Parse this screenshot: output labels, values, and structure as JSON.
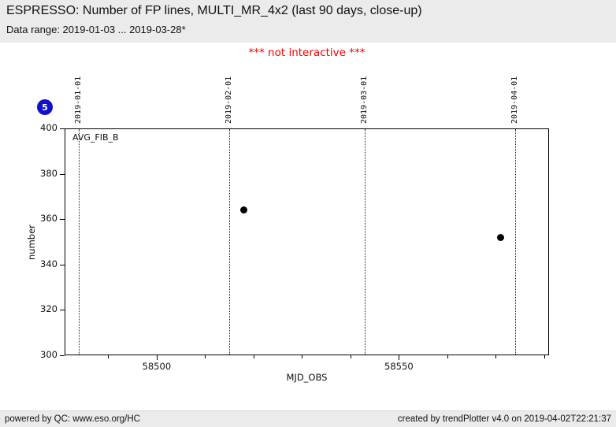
{
  "header": {
    "title": "ESPRESSO: Number of FP lines, MULTI_MR_4x2 (last 90 days, close-up)",
    "subtitle": "Data range: 2019-01-03 ... 2019-03-28*"
  },
  "notice": "*** not interactive ***",
  "plot_number_badge": "5",
  "chart_data": {
    "type": "scatter",
    "series_label": "AVG_FIB_B",
    "xlabel": "MJD_OBS",
    "ylabel": "number",
    "xlim": [
      58481,
      58581
    ],
    "ylim": [
      300,
      400
    ],
    "x_major_ticks": [
      58500,
      58550
    ],
    "x_minor_ticks": [
      58490,
      58510,
      58520,
      58530,
      58540,
      58560,
      58570,
      58580
    ],
    "y_ticks": [
      300,
      320,
      340,
      360,
      380,
      400
    ],
    "date_gridlines": [
      {
        "mjd": 58484,
        "label": "2019-01-01"
      },
      {
        "mjd": 58515,
        "label": "2019-02-01"
      },
      {
        "mjd": 58543,
        "label": "2019-03-01"
      },
      {
        "mjd": 58574,
        "label": "2019-04-01"
      }
    ],
    "points": [
      {
        "mjd": 58518,
        "value": 364
      },
      {
        "mjd": 58571,
        "value": 352
      }
    ],
    "marker_color": "#000000",
    "legend_position": "none",
    "grid": "vertical dotted date lines only"
  },
  "colors": {
    "header_bg": "#ebebeb",
    "footer_bg": "#ebebeb",
    "notice_red": "#f40000",
    "badge_blue": "#1111cc",
    "plot_border": "#000000"
  },
  "footer": {
    "left": "powered by QC: www.eso.org/HC",
    "right": "created by trendPlotter v4.0 on 2019-04-02T22:21:37"
  }
}
